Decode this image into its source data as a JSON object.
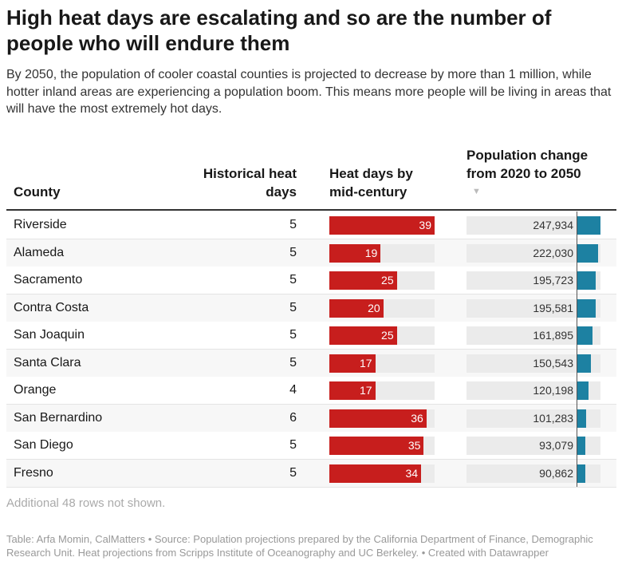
{
  "header": {
    "title": "High heat days are escalating and so are the number of people who will endure them",
    "subtitle": "By 2050, the population of cooler coastal counties is projected to decrease by more than 1 million, while hotter inland areas are experiencing a population boom. This means more people will be living in areas that will have the most extremely hot days."
  },
  "table": {
    "columns": [
      "County",
      "Historical heat days",
      "Heat days by mid-century",
      "Population change from 2020 to 2050"
    ],
    "rows": [
      [
        "Riverside",
        5,
        39,
        {
          "value": 247934,
          "label": "247,934"
        }
      ],
      [
        "Alameda",
        5,
        19,
        {
          "value": 222030,
          "label": "222,030"
        }
      ],
      [
        "Sacramento",
        5,
        25,
        {
          "value": 195723,
          "label": "195,723"
        }
      ],
      [
        "Contra Costa",
        5,
        20,
        {
          "value": 195581,
          "label": "195,581"
        }
      ],
      [
        "San Joaquin",
        5,
        25,
        {
          "value": 161895,
          "label": "161,895"
        }
      ],
      [
        "Santa Clara",
        5,
        17,
        {
          "value": 150543,
          "label": "150,543"
        }
      ],
      [
        "Orange",
        4,
        17,
        {
          "value": 120198,
          "label": "120,198"
        }
      ],
      [
        "San Bernardino",
        6,
        36,
        {
          "value": 101283,
          "label": "101,283"
        }
      ],
      [
        "San Diego",
        5,
        35,
        {
          "value": 93079,
          "label": "93,079"
        }
      ],
      [
        "Fresno",
        5,
        34,
        {
          "value": 90862,
          "label": "90,862"
        }
      ]
    ],
    "more_rows_note": "Additional 48 rows not shown."
  },
  "footer": {
    "source": "Table: Arfa Momin, CalMatters • Source: Population projections prepared by the California Department of Finance, Demographic Research Unit. Heat projections from Scripps Institute of Oceanography and UC Berkeley. • Created with Datawrapper"
  }
}
